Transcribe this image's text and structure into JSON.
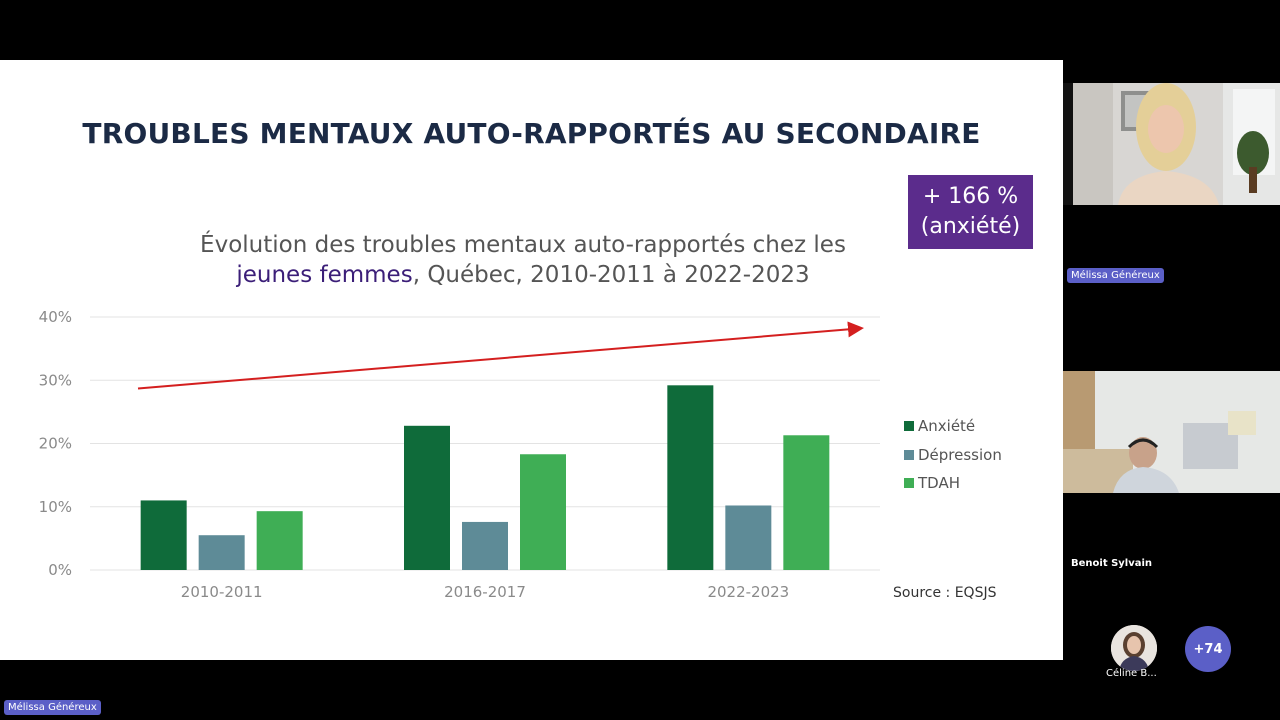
{
  "slide": {
    "title": "TROUBLES MENTAUX AUTO-RAPPORTÉS AU SECONDAIRE",
    "badge": {
      "line1": "+ 166 %",
      "line2": "(anxiété)"
    },
    "subtitle": {
      "line1": "Évolution des troubles mentaux auto-rapportés chez les",
      "highlight": "jeunes femmes",
      "rest": ", Québec, 2010-2011 à 2022-2023"
    },
    "source": "Source : EQSJS"
  },
  "chart_data": {
    "type": "bar",
    "categories": [
      "2010-2011",
      "2016-2017",
      "2022-2023"
    ],
    "series": [
      {
        "name": "Anxiété",
        "values": [
          11.0,
          22.8,
          29.2
        ],
        "color": "#0f6b3a"
      },
      {
        "name": "Dépression",
        "values": [
          5.5,
          7.6,
          10.2
        ],
        "color": "#5e8b97"
      },
      {
        "name": "TDAH",
        "values": [
          9.3,
          18.3,
          21.3
        ],
        "color": "#3fae55"
      }
    ],
    "yticks": [
      "0%",
      "10%",
      "20%",
      "30%",
      "40%"
    ],
    "ylim": [
      0,
      40
    ],
    "grid": true,
    "legend_position": "right",
    "trend_arrow": {
      "color": "#d41f1f",
      "from": 28.7,
      "to": 38.2
    }
  },
  "meeting": {
    "presenter_label": "Mélissa Généreux",
    "participants": [
      {
        "name": "Mélissa Généreux"
      },
      {
        "name": "Benoit Sylvain"
      },
      {
        "name": "Céline B..."
      }
    ],
    "overflow_count": "+74"
  }
}
